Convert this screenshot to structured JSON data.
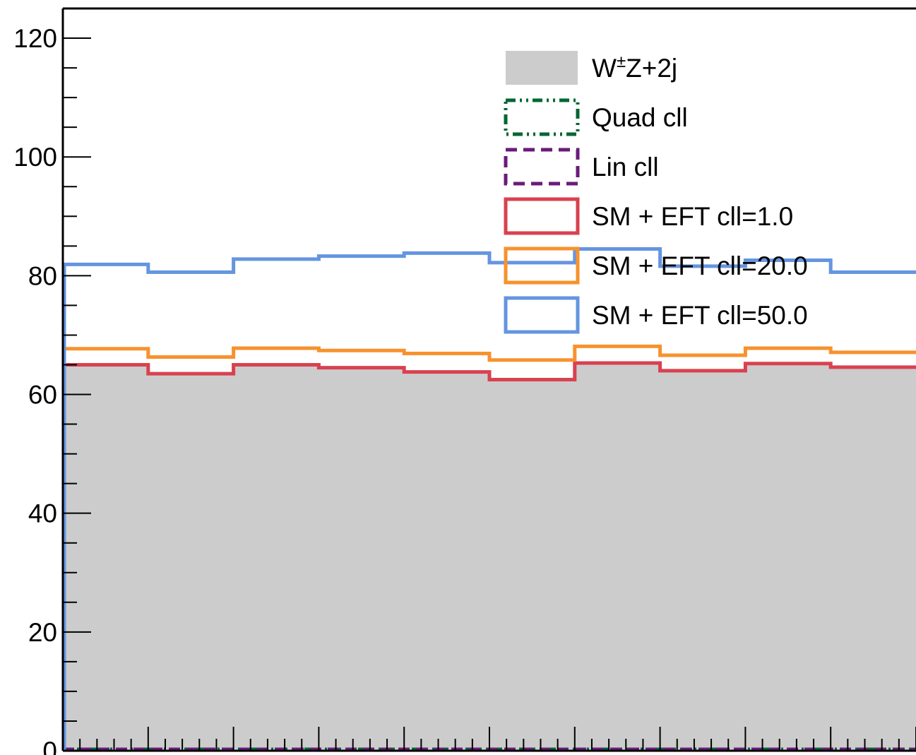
{
  "chart_data": {
    "type": "histogram",
    "title": "",
    "xlabel": "",
    "ylabel": "",
    "ylim": [
      0,
      125
    ],
    "yticks": [
      "0",
      "20",
      "40",
      "60",
      "80",
      "100",
      "120"
    ],
    "bins": 10,
    "grid": false,
    "legend_position": "top-right",
    "series": [
      {
        "name": "W±Z+2j",
        "name_parts": [
          "W",
          "±",
          "Z+2j"
        ],
        "style": "filled",
        "color": "#cccccc",
        "values": [
          65,
          63.5,
          65,
          64.5,
          63.8,
          62.5,
          65.3,
          64,
          65.2,
          64.6
        ]
      },
      {
        "name": "Quad cll",
        "style": "dash-dot",
        "color": "#006633",
        "values": [
          0,
          0,
          0,
          0,
          0,
          0,
          0,
          0,
          0,
          0
        ]
      },
      {
        "name": "Lin cll",
        "style": "dashed",
        "color": "#6a1b7a",
        "values": [
          0,
          0,
          0,
          0,
          0,
          0,
          0,
          0,
          0,
          0
        ]
      },
      {
        "name": "SM + EFT cll=1.0",
        "style": "solid",
        "color": "#d9414f",
        "values": [
          65,
          63.5,
          65,
          64.5,
          63.8,
          62.5,
          65.3,
          64,
          65.2,
          64.6
        ]
      },
      {
        "name": "SM + EFT cll=20.0",
        "style": "solid",
        "color": "#f7922e",
        "values": [
          67.7,
          66.3,
          67.8,
          67.4,
          66.9,
          65.8,
          68.1,
          66.6,
          67.8,
          67.1
        ]
      },
      {
        "name": "SM + EFT cll=50.0",
        "style": "solid",
        "color": "#6495e0",
        "values": [
          81.9,
          80.6,
          82.8,
          83.3,
          83.8,
          82.2,
          84.5,
          81.6,
          82.6,
          80.6
        ]
      }
    ]
  }
}
